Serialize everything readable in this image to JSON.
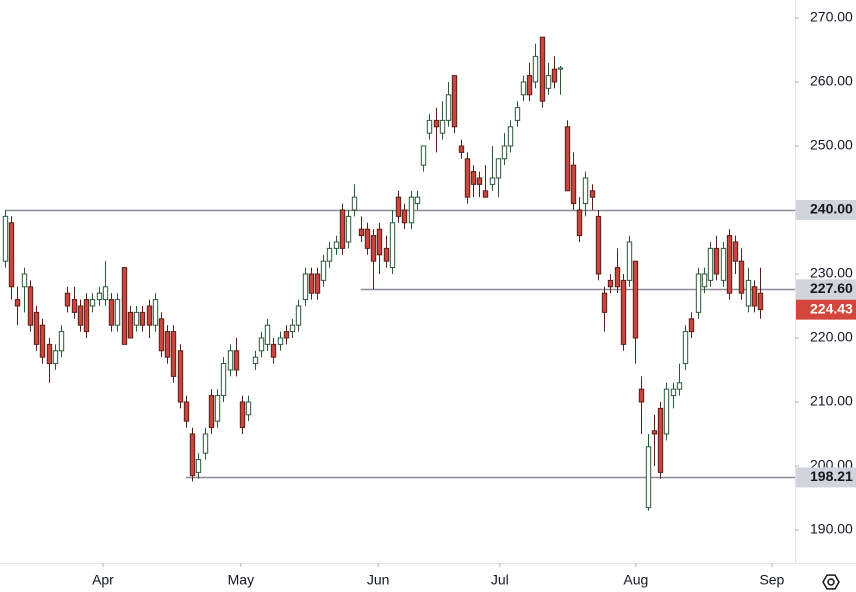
{
  "chart_data": {
    "type": "candlestick",
    "open": [
      232,
      238,
      226,
      228,
      228,
      224,
      222,
      219,
      216,
      218,
      227,
      226,
      225,
      226,
      225,
      226,
      226,
      226,
      222,
      231,
      224,
      222,
      224,
      225,
      222,
      223,
      221,
      221,
      218,
      210,
      205,
      199,
      202,
      211,
      207,
      211,
      215,
      218,
      210,
      208,
      216,
      218,
      219,
      219,
      219,
      221,
      221,
      222,
      226,
      230,
      230,
      229,
      232,
      234,
      240,
      235,
      240,
      237,
      237,
      236,
      237,
      234,
      231,
      242,
      240,
      238,
      241,
      247,
      252,
      254,
      252,
      254,
      261,
      250,
      248,
      246,
      245,
      243,
      244,
      245,
      248,
      250,
      254,
      258,
      261,
      260,
      267,
      259,
      262,
      262,
      253,
      247,
      240,
      241,
      243,
      239,
      227,
      229,
      231,
      229,
      229,
      232,
      212,
      193.5,
      205.5,
      209,
      205,
      211,
      212,
      216,
      223,
      224,
      228,
      229,
      234,
      229,
      236,
      235,
      232,
      225,
      228,
      227
    ],
    "high": [
      240,
      239,
      228,
      231,
      229,
      225,
      223,
      220,
      219,
      222,
      228,
      228,
      226,
      227,
      227,
      228,
      232,
      227,
      227,
      231,
      225,
      225,
      225,
      226,
      227,
      224,
      222,
      222,
      219,
      211,
      206,
      202,
      206,
      212,
      212,
      217,
      219,
      220,
      211,
      211,
      218,
      221,
      223,
      220,
      221,
      222,
      223,
      226,
      231,
      231,
      231,
      233,
      235,
      236,
      241,
      240,
      244,
      239,
      238,
      237,
      238,
      236,
      240,
      243,
      241,
      243,
      243,
      250,
      255,
      256,
      257,
      260,
      261,
      251,
      249,
      247,
      246,
      247,
      250,
      248,
      252,
      254,
      257,
      261,
      263,
      266,
      267,
      263,
      264,
      262.5,
      254,
      249,
      242,
      246,
      244,
      240,
      228,
      230,
      234,
      230,
      236,
      232,
      214,
      205,
      208,
      210,
      213,
      213,
      216,
      222,
      224,
      231,
      231,
      235,
      236,
      235,
      237,
      236,
      234,
      231,
      229,
      231
    ],
    "low": [
      231,
      226,
      222,
      224,
      221,
      218,
      216,
      213,
      215,
      217,
      224,
      223,
      221,
      220,
      224,
      225,
      225,
      221,
      221,
      219,
      220,
      221,
      221,
      220,
      221,
      217,
      216,
      213,
      209,
      206,
      197.6,
      198,
      201,
      205,
      206,
      210,
      214,
      214,
      205,
      207,
      215,
      217,
      218,
      216,
      218,
      219,
      220,
      221,
      225,
      226,
      226,
      228,
      231,
      233,
      233,
      234,
      239,
      235,
      233,
      227.6,
      230,
      231,
      230,
      238,
      237,
      237,
      240,
      246,
      251,
      249,
      251,
      253,
      252,
      248,
      241,
      242,
      242,
      242,
      243,
      242,
      247,
      249,
      253,
      257,
      257,
      259,
      256,
      258,
      259,
      258,
      243,
      240,
      235,
      239,
      240,
      229,
      221,
      227,
      227,
      218,
      228,
      216,
      205,
      193,
      200,
      198,
      204,
      209,
      211,
      215,
      220,
      223,
      227,
      228,
      229,
      228,
      226,
      230,
      226,
      224,
      224,
      223
    ],
    "close": [
      239,
      228,
      225,
      230,
      222,
      219,
      217,
      216,
      218,
      221,
      225,
      224,
      222,
      221,
      226,
      227,
      228,
      222,
      226,
      219,
      220,
      224,
      222,
      222,
      226,
      218,
      217,
      214,
      210,
      207,
      198.5,
      201,
      205,
      206,
      211,
      216,
      218,
      215,
      206,
      210,
      217,
      220,
      222,
      217,
      220,
      220,
      222,
      225,
      230,
      227,
      227,
      232,
      234,
      235,
      234,
      239,
      242,
      236,
      234,
      232,
      233,
      232,
      238,
      239,
      238,
      242,
      242,
      250,
      254,
      253,
      254,
      258,
      253,
      249,
      242,
      244,
      244,
      242,
      245,
      248,
      250,
      253,
      256,
      260,
      258,
      264,
      257,
      261,
      260,
      262.2,
      243,
      241,
      236,
      245,
      242,
      230,
      224,
      228,
      228,
      219,
      235,
      220,
      210,
      203,
      205,
      199,
      212,
      212,
      213,
      221,
      221,
      230,
      230,
      234,
      230,
      234,
      227,
      232,
      227,
      229,
      225,
      224.43
    ],
    "xlim": [
      -0.8,
      126.6
    ],
    "xticks": [
      {
        "value": 15.7,
        "label": "Apr"
      },
      {
        "value": 37.8,
        "label": "May"
      },
      {
        "value": 59.8,
        "label": "Jun"
      },
      {
        "value": 79.3,
        "label": "Jul"
      },
      {
        "value": 101.1,
        "label": "Aug"
      },
      {
        "value": 122.9,
        "label": "Sep"
      }
    ],
    "ylim": [
      184.84,
      272.81
    ],
    "yticks": [
      {
        "value": 190,
        "label": "190.00"
      },
      {
        "value": 200,
        "label": "200.00"
      },
      {
        "value": 210,
        "label": "210.00"
      },
      {
        "value": 220,
        "label": "220.00"
      },
      {
        "value": 230,
        "label": "230.00"
      },
      {
        "value": 240,
        "label": "240.00"
      },
      {
        "value": 250,
        "label": "250.00"
      },
      {
        "value": 260,
        "label": "260.00"
      },
      {
        "value": 270,
        "label": "270.00"
      }
    ],
    "hlines": [
      {
        "value": 240,
        "label": "240.00",
        "start": 0
      },
      {
        "value": 227.6,
        "label": "227.60",
        "start": 57
      },
      {
        "value": 198.21,
        "label": "198.21",
        "start": 29
      }
    ],
    "last": {
      "value": 224.43,
      "label": "224.43"
    },
    "up_color": "#ffffff",
    "up_edge": "#2b5a3a",
    "down_color": "#c8463d",
    "down_edge": "#5a1f19",
    "line_color": "#8a8d99",
    "last_color": "#d2463b"
  }
}
